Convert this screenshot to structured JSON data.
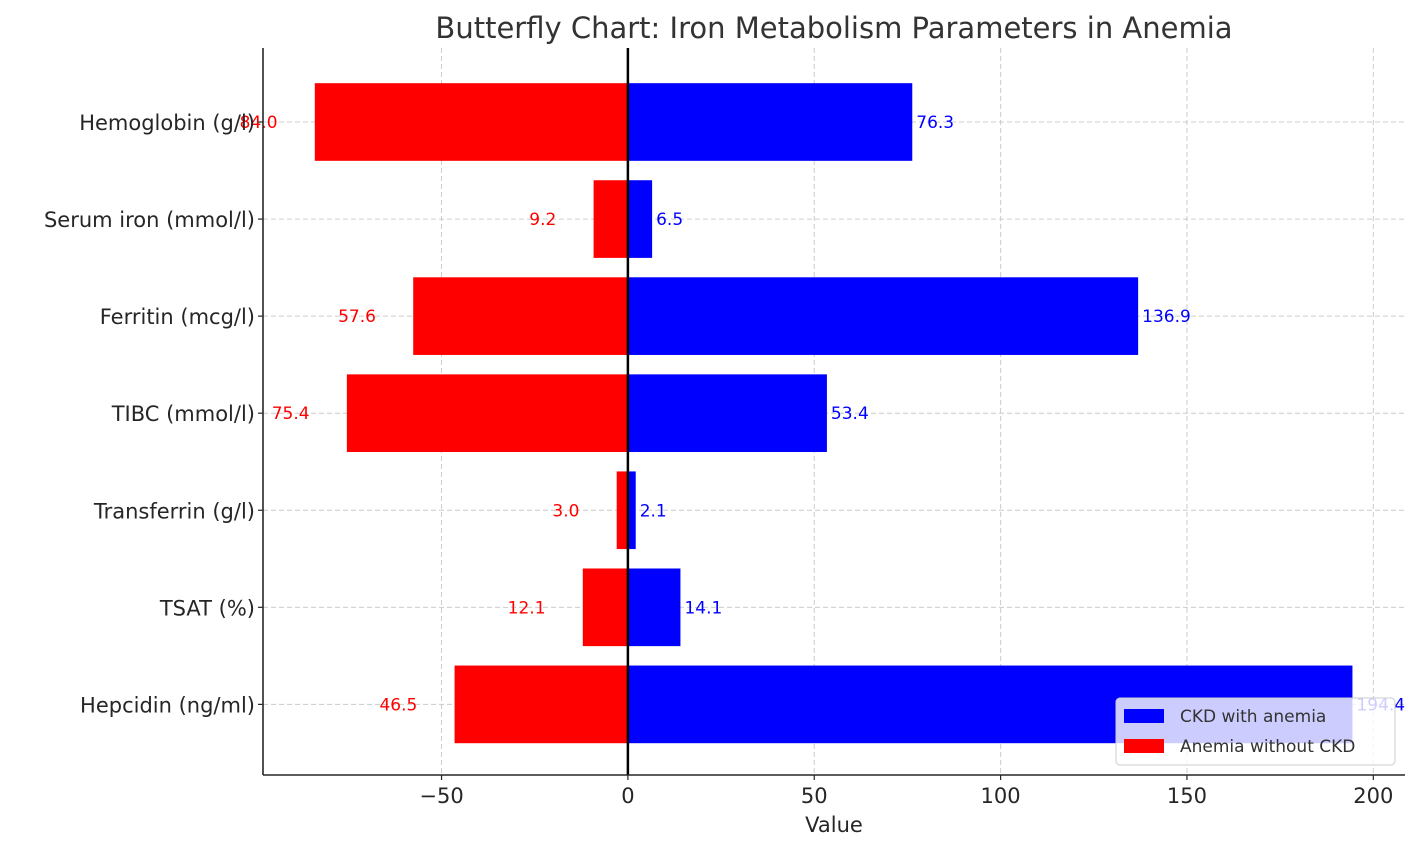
{
  "chart_data": {
    "type": "bar",
    "orientation": "horizontal",
    "title": "Butterfly Chart: Iron Metabolism Parameters in Anemia",
    "xlabel": "Value",
    "ylabel": "",
    "categories": [
      "Hemoglobin (g/l)",
      "Serum iron (mmol/l)",
      "Ferritin (mcg/l)",
      "TIBC (mmol/l)",
      "Transferrin (g/l)",
      "TSAT (%)",
      "Hepcidin (ng/ml)"
    ],
    "series": [
      {
        "name": "CKD with anemia",
        "color": "#0000ff",
        "direction": "right",
        "values": [
          76.3,
          6.5,
          136.9,
          53.4,
          2.1,
          14.1,
          194.4
        ],
        "labels": [
          "76.3",
          "6.5",
          "136.9",
          "53.4",
          "2.1",
          "14.1",
          "194.4"
        ]
      },
      {
        "name": "Anemia without CKD",
        "color": "#ff0000",
        "direction": "left",
        "values": [
          84.0,
          9.2,
          57.6,
          75.4,
          3.0,
          12.1,
          46.5
        ],
        "labels": [
          "84.0",
          "9.2",
          "57.6",
          "75.4",
          "3.0",
          "12.1",
          "46.5"
        ]
      }
    ],
    "xticks": [
      -50,
      0,
      50,
      100,
      150,
      200
    ],
    "xtick_labels": [
      "−50",
      "0",
      "50",
      "100",
      "150",
      "200"
    ],
    "xlim": [
      -97.9,
      208.5
    ],
    "grid": true,
    "zero_line": true,
    "legend": {
      "position": "bottom-right",
      "entries": [
        "CKD with anemia",
        "Anemia without CKD"
      ]
    }
  }
}
